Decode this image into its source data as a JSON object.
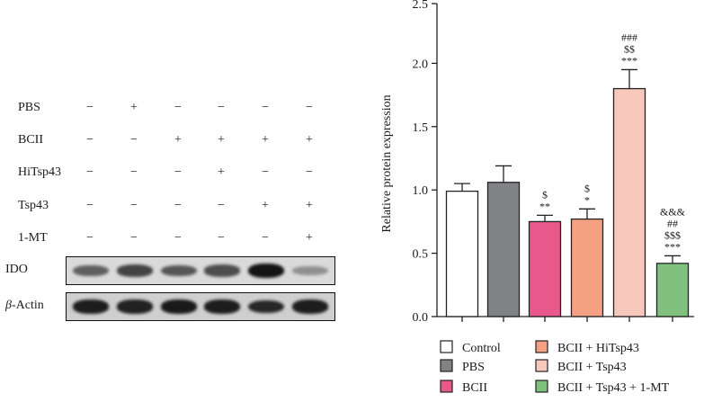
{
  "blot": {
    "conditions": [
      {
        "label": "PBS",
        "signs": [
          "−",
          "+",
          "−",
          "−",
          "−",
          "−"
        ]
      },
      {
        "label": "BCII",
        "signs": [
          "−",
          "−",
          "+",
          "+",
          "+",
          "+"
        ]
      },
      {
        "label": "HiTsp43",
        "signs": [
          "−",
          "−",
          "−",
          "+",
          "−",
          "−"
        ]
      },
      {
        "label": "Tsp43",
        "signs": [
          "−",
          "−",
          "−",
          "−",
          "+",
          "+"
        ]
      },
      {
        "label": "1-MT",
        "signs": [
          "−",
          "−",
          "−",
          "−",
          "−",
          "+"
        ]
      }
    ],
    "bands": [
      {
        "label": "IDO",
        "label_prefix": "",
        "intensity": [
          0.55,
          0.7,
          0.6,
          0.65,
          0.95,
          0.3
        ],
        "background": "#dadada"
      },
      {
        "label": "-Actin",
        "label_prefix": "β",
        "intensity": [
          0.9,
          0.88,
          0.92,
          0.9,
          0.85,
          0.9
        ],
        "background": "#cfcfcf"
      }
    ]
  },
  "chart_data": {
    "type": "bar",
    "ylabel": "Relative protein expression",
    "ylim": [
      0,
      2.5
    ],
    "yticks": [
      "0.0",
      "0.5",
      "1.0",
      "1.5",
      "2.0",
      "2.5"
    ],
    "categories": [
      "Control",
      "PBS",
      "BCII",
      "BCII + HiTsp43",
      "BCII + Tsp43",
      "BCII + Tsp43 + 1-MT"
    ],
    "values": [
      0.99,
      1.06,
      0.75,
      0.77,
      1.8,
      0.42
    ],
    "errors": [
      0.06,
      0.13,
      0.05,
      0.08,
      0.15,
      0.06
    ],
    "colors": [
      "#ffffff",
      "#808285",
      "#e8588a",
      "#f4a083",
      "#f9c8bd",
      "#80c17f"
    ],
    "annotations": [
      [],
      [],
      [
        "$",
        "**"
      ],
      [
        "$",
        "*"
      ],
      [
        "###",
        "$$",
        "***"
      ],
      [
        "&&&",
        "##",
        "$$$",
        "***"
      ]
    ],
    "legend_position": "bottom"
  }
}
